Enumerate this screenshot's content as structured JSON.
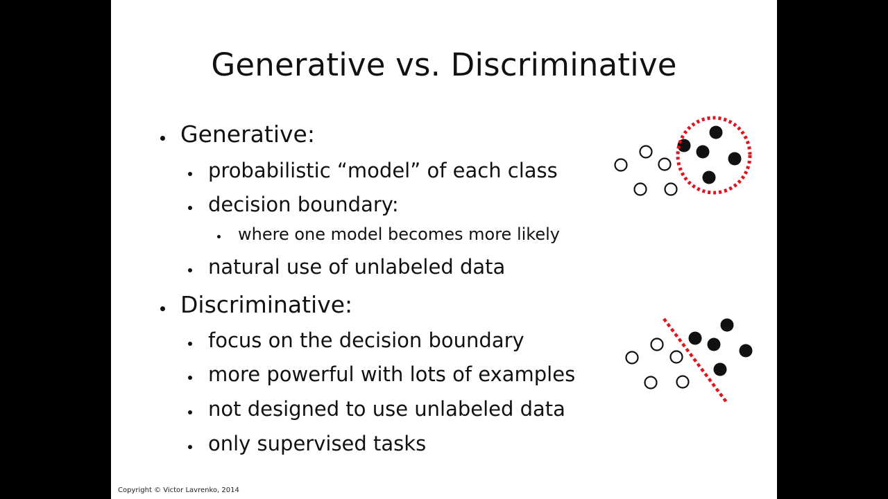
{
  "slide": {
    "title": "Generative vs. Discriminative",
    "generative": {
      "heading": "Generative:",
      "items": [
        "probabilistic “model” of each class",
        "decision boundary:",
        "natural use of unlabeled data"
      ],
      "subitem": "where one model becomes more likely"
    },
    "discriminative": {
      "heading": "Discriminative:",
      "items": [
        "focus on the decision boundary",
        "more powerful with lots of examples",
        "not designed to use unlabeled data",
        "only supervised tasks"
      ]
    },
    "copyright": "Copyright © Victor Lavrenko, 2014"
  },
  "colors": {
    "boundary": "#e0141e",
    "background_frame": "#000000",
    "slide_background": "#ffffff"
  },
  "icons": {
    "generative_diagram": "dashed-circle-around-filled-points",
    "discriminative_diagram": "dashed-line-separating-points"
  }
}
